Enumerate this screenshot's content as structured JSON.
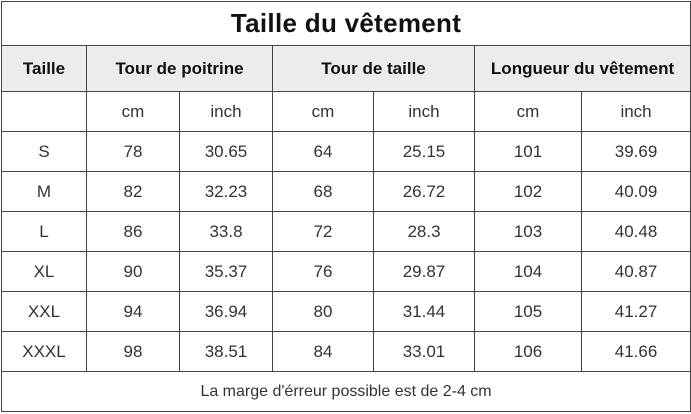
{
  "title": "Taille du vêtement",
  "headers": {
    "size": "Taille",
    "chest": "Tour de poitrine",
    "waist": "Tour de taille",
    "length": "Longueur du vêtement"
  },
  "units": {
    "chest_cm": "cm",
    "chest_inch": "inch",
    "waist_cm": "cm",
    "waist_inch": "inch",
    "length_cm": "cm",
    "length_inch": "inch"
  },
  "rows": [
    {
      "size": "S",
      "chest_cm": "78",
      "chest_inch": "30.65",
      "waist_cm": "64",
      "waist_inch": "25.15",
      "length_cm": "101",
      "length_inch": "39.69"
    },
    {
      "size": "M",
      "chest_cm": "82",
      "chest_inch": "32.23",
      "waist_cm": "68",
      "waist_inch": "26.72",
      "length_cm": "102",
      "length_inch": "40.09"
    },
    {
      "size": "L",
      "chest_cm": "86",
      "chest_inch": "33.8",
      "waist_cm": "72",
      "waist_inch": "28.3",
      "length_cm": "103",
      "length_inch": "40.48"
    },
    {
      "size": "XL",
      "chest_cm": "90",
      "chest_inch": "35.37",
      "waist_cm": "76",
      "waist_inch": "29.87",
      "length_cm": "104",
      "length_inch": "40.87"
    },
    {
      "size": "XXL",
      "chest_cm": "94",
      "chest_inch": "36.94",
      "waist_cm": "80",
      "waist_inch": "31.44",
      "length_cm": "105",
      "length_inch": "41.27"
    },
    {
      "size": "XXXL",
      "chest_cm": "98",
      "chest_inch": "38.51",
      "waist_cm": "84",
      "waist_inch": "33.01",
      "length_cm": "106",
      "length_inch": "41.66"
    }
  ],
  "note": "La marge d'érreur possible est de 2-4 cm"
}
